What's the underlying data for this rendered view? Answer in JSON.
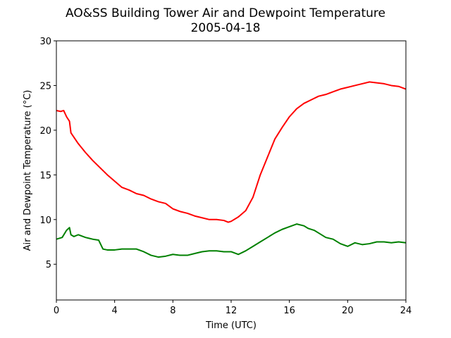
{
  "chart_data": {
    "type": "line",
    "title": "AO&SS Building Tower Air and Dewpoint Temperature",
    "subtitle": "2005-04-18",
    "xlabel": "Time (UTC)",
    "ylabel": "Air and Dewpoint Temperature (°C)",
    "xlim": [
      0,
      24
    ],
    "ylim": [
      1,
      30
    ],
    "xticks": [
      0,
      4,
      8,
      12,
      16,
      20,
      24
    ],
    "yticks": [
      5,
      10,
      15,
      20,
      25,
      30
    ],
    "grid": false,
    "series": [
      {
        "color": "#ff0000",
        "x": [
          0,
          0.3,
          0.5,
          0.7,
          0.9,
          1.0,
          1.5,
          2,
          2.5,
          3,
          3.5,
          4,
          4.5,
          5,
          5.5,
          6,
          6.5,
          7,
          7.5,
          8,
          8.5,
          9,
          9.5,
          10,
          10.5,
          11,
          11.5,
          11.8,
          12,
          12.5,
          13,
          13.5,
          14,
          14.5,
          15,
          15.5,
          16,
          16.5,
          17,
          17.5,
          18,
          18.5,
          19,
          19.5,
          20,
          20.5,
          21,
          21.5,
          22,
          22.5,
          23,
          23.5,
          24
        ],
        "y": [
          22.2,
          22.1,
          22.2,
          21.5,
          21.0,
          19.7,
          18.5,
          17.5,
          16.6,
          15.8,
          15.0,
          14.3,
          13.6,
          13.3,
          12.9,
          12.7,
          12.3,
          12.0,
          11.8,
          11.2,
          10.9,
          10.7,
          10.4,
          10.2,
          10.0,
          10.0,
          9.9,
          9.7,
          9.8,
          10.3,
          11.0,
          12.5,
          15.0,
          17.0,
          19.0,
          20.3,
          21.5,
          22.4,
          23.0,
          23.4,
          23.8,
          24.0,
          24.3,
          24.6,
          24.8,
          25.0,
          25.2,
          25.4,
          25.3,
          25.2,
          25.0,
          24.9,
          24.6
        ]
      },
      {
        "color": "#008000",
        "x": [
          0,
          0.4,
          0.7,
          0.9,
          1.0,
          1.2,
          1.5,
          2,
          2.5,
          2.9,
          3.2,
          3.5,
          4,
          4.5,
          5,
          5.5,
          6,
          6.5,
          7,
          7.5,
          8,
          8.5,
          9,
          9.5,
          10,
          10.5,
          11,
          11.5,
          12,
          12.5,
          13,
          13.5,
          14,
          14.5,
          15,
          15.5,
          16,
          16.5,
          17,
          17.3,
          17.7,
          18,
          18.5,
          19,
          19.5,
          20,
          20.5,
          21,
          21.5,
          22,
          22.5,
          23,
          23.5,
          24
        ],
        "y": [
          7.8,
          8.0,
          8.8,
          9.1,
          8.3,
          8.1,
          8.3,
          8.0,
          7.8,
          7.7,
          6.7,
          6.6,
          6.6,
          6.7,
          6.7,
          6.7,
          6.4,
          6.0,
          5.8,
          5.9,
          6.1,
          6.0,
          6.0,
          6.2,
          6.4,
          6.5,
          6.5,
          6.4,
          6.4,
          6.1,
          6.5,
          7.0,
          7.5,
          8.0,
          8.5,
          8.9,
          9.2,
          9.5,
          9.3,
          9.0,
          8.8,
          8.5,
          8.0,
          7.8,
          7.3,
          7.0,
          7.4,
          7.2,
          7.3,
          7.5,
          7.5,
          7.4,
          7.5,
          7.4
        ]
      }
    ]
  }
}
